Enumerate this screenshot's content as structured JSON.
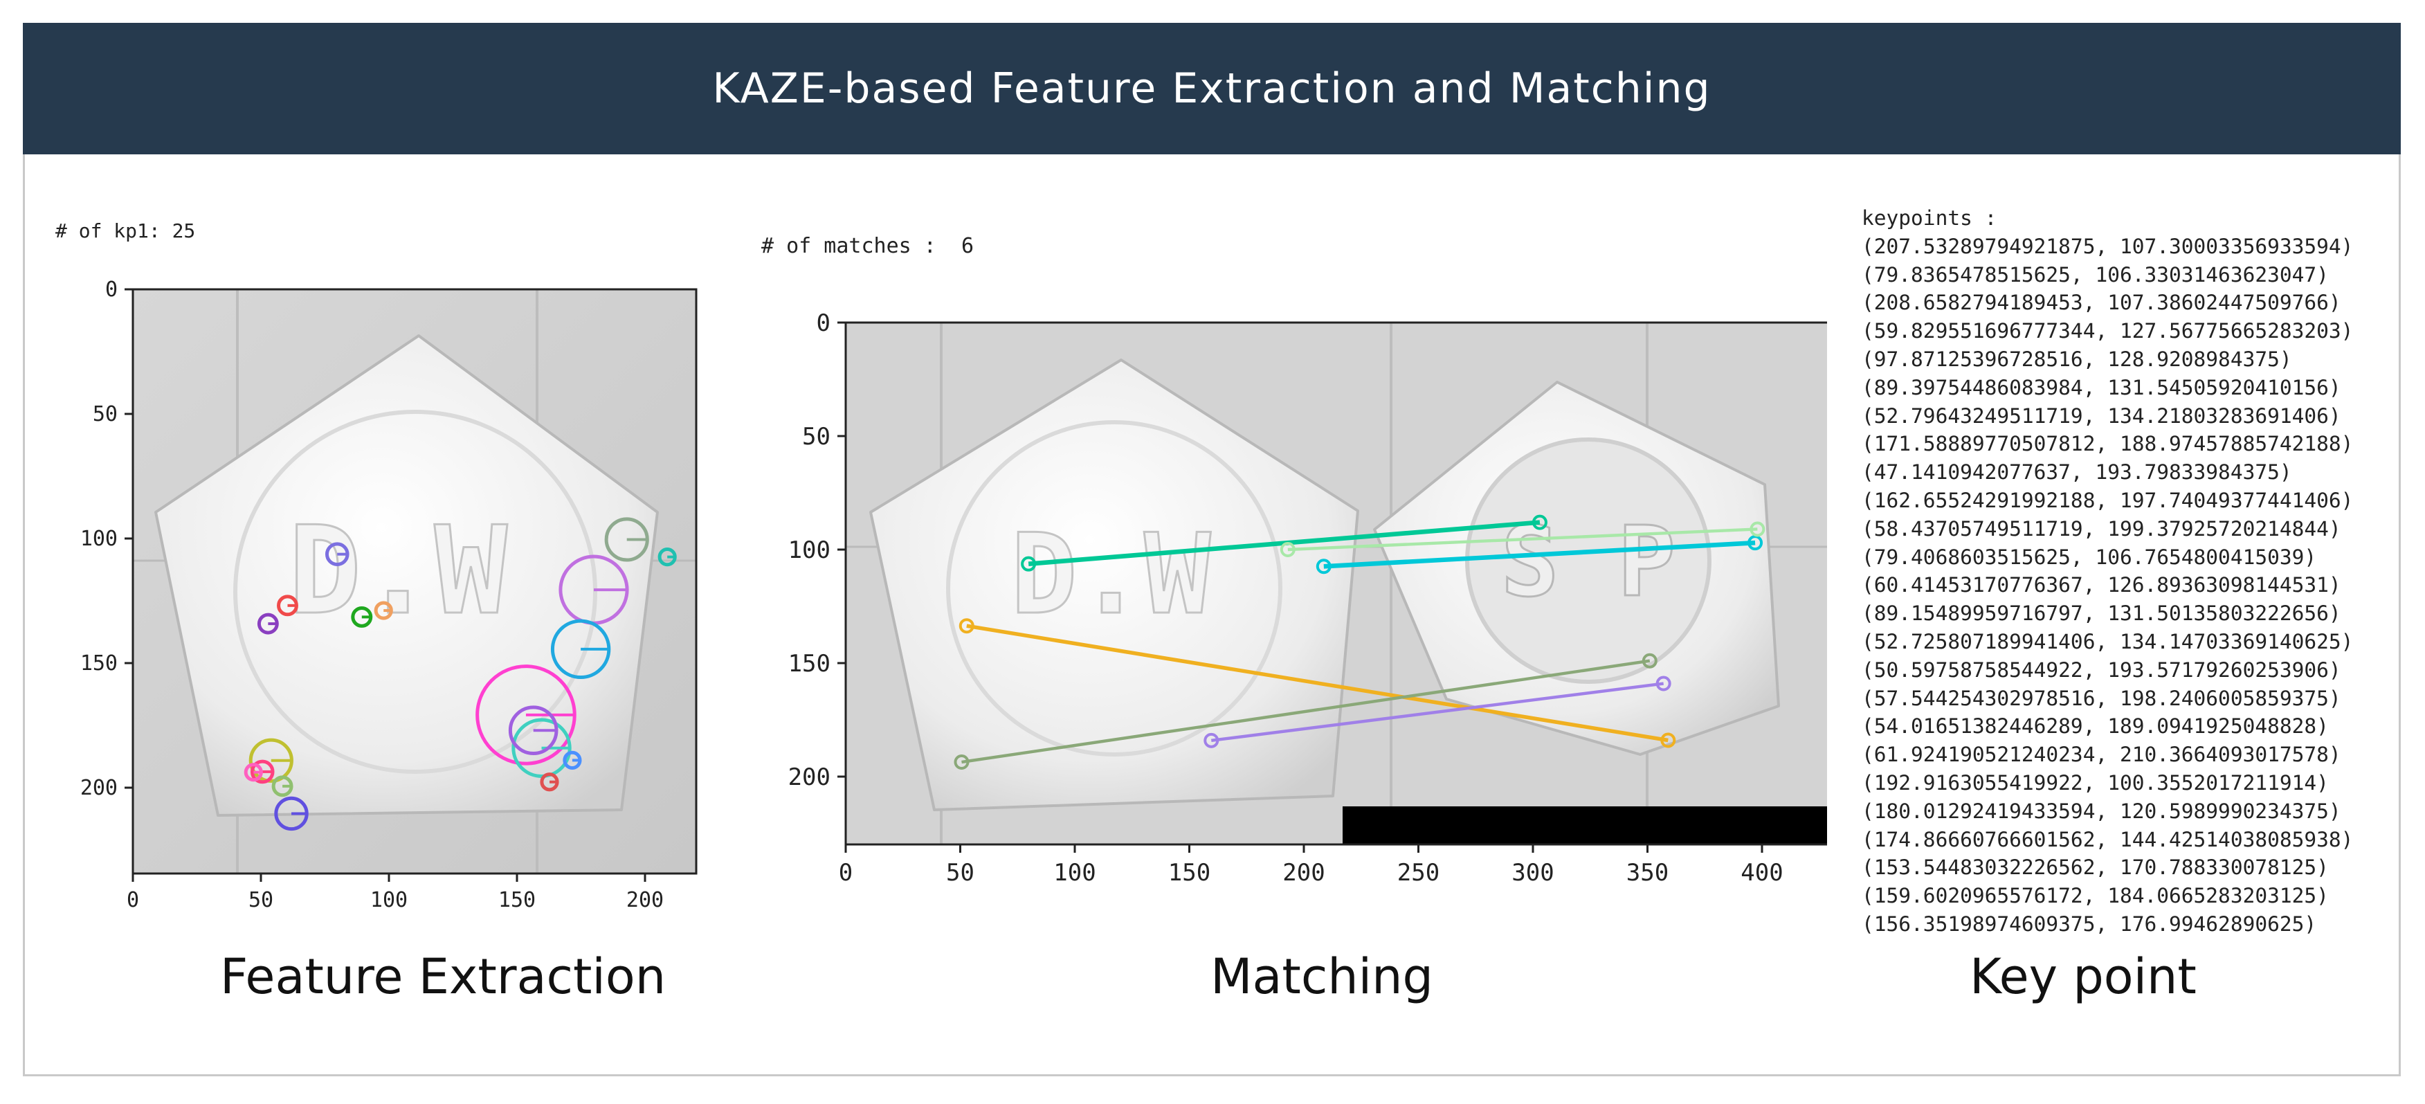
{
  "header": {
    "title": "KAZE-based Feature Extraction and Matching"
  },
  "panels": {
    "extraction": {
      "count_label": "# of kp1: 25",
      "caption": "Feature Extraction",
      "x_ticks": [
        "0",
        "50",
        "100",
        "150",
        "200"
      ],
      "y_ticks": [
        "0",
        "50",
        "100",
        "150",
        "200"
      ],
      "pill_text": "D.W"
    },
    "matching": {
      "count_label": "# of matches :  6",
      "caption": "Matching",
      "x_ticks": [
        "0",
        "50",
        "100",
        "150",
        "200",
        "250",
        "300",
        "350",
        "400"
      ],
      "y_ticks": [
        "0",
        "50",
        "100",
        "150",
        "200"
      ],
      "pill_text_left": "D.W",
      "pill_text_right": "S P"
    },
    "keypoints": {
      "title": "keypoints :",
      "caption": "Key point",
      "items": [
        "(207.53289794921875, 107.30003356933594)",
        "(79.8365478515625, 106.33031463623047)",
        "(208.6582794189453, 107.38602447509766)",
        "(59.829551696777344, 127.56775665283203)",
        "(97.87125396728516, 128.9208984375)",
        "(89.39754486083984, 131.54505920410156)",
        "(52.79643249511719, 134.21803283691406)",
        "(171.58889770507812, 188.97457885742188)",
        "(47.1410942077637, 193.79833984375)",
        "(162.65524291992188, 197.74049377441406)",
        "(58.43705749511719, 199.37925720214844)",
        "(79.4068603515625, 106.7654800415039)",
        "(60.41453170776367, 126.89363098144531)",
        "(89.15489959716797, 131.50135803222656)",
        "(52.725807189941406, 134.14703369140625)",
        "(50.59758758544922, 193.57179260253906)",
        "(57.544254302978516, 198.2406005859375)",
        "(54.01651382446289, 189.0941925048828)",
        "(61.924190521240234, 210.3664093017578)",
        "(192.9163055419922, 100.3552017211914)",
        "(180.01292419433594, 120.5989990234375)",
        "(174.86660766601562, 144.42514038085938)",
        "(153.54483032226562, 170.788330078125)",
        "(159.6020965576172, 184.0665283203125)",
        "(156.35198974609375, 176.99462890625)"
      ]
    }
  },
  "kp1_markers": [
    {
      "x": 79.8,
      "y": 106.3,
      "r": 4,
      "color": "#7b6fe0"
    },
    {
      "x": 60.4,
      "y": 126.9,
      "r": 3.5,
      "color": "#f04a4a"
    },
    {
      "x": 52.8,
      "y": 134.2,
      "r": 3.5,
      "color": "#8a3fc0"
    },
    {
      "x": 89.4,
      "y": 131.5,
      "r": 3.5,
      "color": "#1fa81f"
    },
    {
      "x": 97.9,
      "y": 128.9,
      "r": 3,
      "color": "#f0a060"
    },
    {
      "x": 192.9,
      "y": 100.4,
      "r": 8,
      "color": "#8faa8f"
    },
    {
      "x": 208.7,
      "y": 107.4,
      "r": 3,
      "color": "#20c0b0"
    },
    {
      "x": 180.0,
      "y": 120.6,
      "r": 13,
      "color": "#c070e0"
    },
    {
      "x": 174.9,
      "y": 144.4,
      "r": 11,
      "color": "#20a8e0"
    },
    {
      "x": 153.5,
      "y": 170.8,
      "r": 19,
      "color": "#ff40d0"
    },
    {
      "x": 159.6,
      "y": 184.1,
      "r": 11,
      "color": "#40d0c0"
    },
    {
      "x": 156.4,
      "y": 177.0,
      "r": 9,
      "color": "#a060e0"
    },
    {
      "x": 171.6,
      "y": 189.0,
      "r": 3,
      "color": "#4a90ff"
    },
    {
      "x": 162.7,
      "y": 197.7,
      "r": 3,
      "color": "#e05050"
    },
    {
      "x": 54.0,
      "y": 189.1,
      "r": 8,
      "color": "#c0c030"
    },
    {
      "x": 50.6,
      "y": 193.6,
      "r": 4,
      "color": "#ff4080"
    },
    {
      "x": 47.1,
      "y": 193.8,
      "r": 3,
      "color": "#ff60c0"
    },
    {
      "x": 58.4,
      "y": 199.4,
      "r": 3.5,
      "color": "#90c070"
    },
    {
      "x": 61.9,
      "y": 210.4,
      "r": 6,
      "color": "#6050e0"
    }
  ],
  "matches": [
    {
      "x1": 79.8,
      "y1": 106.3,
      "x2": 303,
      "y2": 88,
      "color": "#00c896",
      "w": 3
    },
    {
      "x1": 208.7,
      "y1": 107.4,
      "x2": 397,
      "y2": 97,
      "color": "#00c8d8",
      "w": 3
    },
    {
      "x1": 193,
      "y1": 100,
      "x2": 398,
      "y2": 91,
      "color": "#a8e8a8",
      "w": 2
    },
    {
      "x1": 52.8,
      "y1": 133.6,
      "x2": 359,
      "y2": 184,
      "color": "#f0b020",
      "w": 2.5
    },
    {
      "x1": 50.6,
      "y1": 193.6,
      "x2": 351,
      "y2": 149,
      "color": "#8aa878",
      "w": 2
    },
    {
      "x1": 159.6,
      "y1": 184.1,
      "x2": 357,
      "y2": 159,
      "color": "#a080e8",
      "w": 2
    }
  ]
}
